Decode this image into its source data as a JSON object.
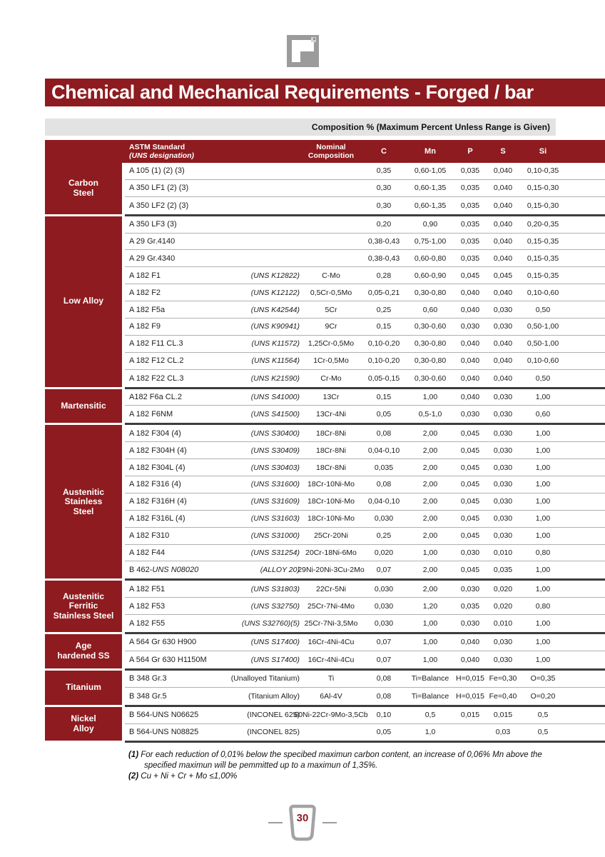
{
  "page": {
    "title": "Chemical and Mechanical Requirements - Forged / bar",
    "page_number": "30"
  },
  "colors": {
    "maroon": "#8e1b1f",
    "note_bar_gray": "#e3e3e3",
    "row_line_light": "#b0b0b0",
    "group_line_dark": "#3d3d3d",
    "logo_gray": "#9b9b9b"
  },
  "table": {
    "composition_note": "Composition % (Maximum Percent Unless Range is Given)",
    "headers": {
      "astm1": "ASTM Standard",
      "astm2": "(UNS designation)",
      "nominal1": "Nominal",
      "nominal2": "Composition",
      "cols": [
        "C",
        "Mn",
        "P",
        "S",
        "Si"
      ]
    },
    "groups": [
      {
        "label": [
          "Carbon",
          "Steel"
        ],
        "rows": [
          {
            "astm": "A 105 (1) (2) (3)",
            "uns": "",
            "nom": "",
            "c": "0,35",
            "mn": "0,60-1,05",
            "p": "0,035",
            "s": "0,040",
            "si": "0,10-0,35"
          },
          {
            "astm": "A 350 LF1 (2) (3)",
            "uns": "",
            "nom": "",
            "c": "0,30",
            "mn": "0,60-1,35",
            "p": "0,035",
            "s": "0,040",
            "si": "0,15-0,30"
          },
          {
            "astm": "A 350 LF2 (2) (3)",
            "uns": "",
            "nom": "",
            "c": "0,30",
            "mn": "0,60-1,35",
            "p": "0,035",
            "s": "0,040",
            "si": "0,15-0,30"
          }
        ]
      },
      {
        "label": [
          "Low Alloy"
        ],
        "rows": [
          {
            "astm": "A 350 LF3 (3)",
            "uns": "",
            "nom": "",
            "c": "0,20",
            "mn": "0,90",
            "p": "0,035",
            "s": "0,040",
            "si": "0,20-0,35"
          },
          {
            "astm": "A 29 Gr.4140",
            "uns": "",
            "nom": "",
            "c": "0,38-0,43",
            "mn": "0,75-1,00",
            "p": "0,035",
            "s": "0,040",
            "si": "0,15-0,35"
          },
          {
            "astm": "A 29 Gr.4340",
            "uns": "",
            "nom": "",
            "c": "0,38-0,43",
            "mn": "0,60-0,80",
            "p": "0,035",
            "s": "0,040",
            "si": "0,15-0,35"
          },
          {
            "astm": "A 182 F1",
            "uns": "(UNS K12822)",
            "unsIt": true,
            "nom": "C-Mo",
            "c": "0,28",
            "mn": "0,60-0,90",
            "p": "0,045",
            "s": "0,045",
            "si": "0,15-0,35"
          },
          {
            "astm": "A 182 F2",
            "uns": "(UNS K12122)",
            "unsIt": true,
            "nom": "0,5Cr-0,5Mo",
            "c": "0,05-0,21",
            "mn": "0,30-0,80",
            "p": "0,040",
            "s": "0,040",
            "si": "0,10-0,60"
          },
          {
            "astm": "A 182 F5a",
            "uns": "(UNS K42544)",
            "unsIt": true,
            "nom": "5Cr",
            "c": "0,25",
            "mn": "0,60",
            "p": "0,040",
            "s": "0,030",
            "si": "0,50"
          },
          {
            "astm": "A 182 F9",
            "uns": "(UNS K90941)",
            "unsIt": true,
            "nom": "9Cr",
            "c": "0,15",
            "mn": "0,30-0,60",
            "p": "0,030",
            "s": "0,030",
            "si": "0,50-1,00"
          },
          {
            "astm": "A 182 F11 CL.3",
            "uns": "(UNS K11572)",
            "unsIt": true,
            "nom": "1,25Cr-0,5Mo",
            "c": "0,10-0,20",
            "mn": "0,30-0,80",
            "p": "0,040",
            "s": "0,040",
            "si": "0,50-1,00"
          },
          {
            "astm": "A 182 F12 CL.2",
            "uns": "(UNS K11564)",
            "unsIt": true,
            "nom": "1Cr-0,5Mo",
            "c": "0,10-0,20",
            "mn": "0,30-0,80",
            "p": "0,040",
            "s": "0,040",
            "si": "0,10-0,60"
          },
          {
            "astm": "A 182 F22 CL.3",
            "uns": "(UNS K21590)",
            "unsIt": true,
            "nom": "Cr-Mo",
            "c": "0,05-0,15",
            "mn": "0,30-0,60",
            "p": "0,040",
            "s": "0,040",
            "si": "0,50"
          }
        ]
      },
      {
        "label": [
          "Martensitic"
        ],
        "rows": [
          {
            "astm": "A182 F6a CL.2",
            "uns": "(UNS S41000)",
            "unsIt": true,
            "nom": "13Cr",
            "c": "0,15",
            "mn": "1,00",
            "p": "0,040",
            "s": "0,030",
            "si": "1,00"
          },
          {
            "astm": "A 182 F6NM",
            "uns": "(UNS S41500)",
            "unsIt": true,
            "nom": "13Cr-4Ni",
            "c": "0,05",
            "mn": "0,5-1,0",
            "p": "0,030",
            "s": "0,030",
            "si": "0,60"
          }
        ]
      },
      {
        "label": [
          "Austenitic",
          "Stainless",
          "Steel"
        ],
        "rows": [
          {
            "astm": "A 182 F304 (4)",
            "uns": "(UNS S30400)",
            "unsIt": true,
            "nom": "18Cr-8Ni",
            "c": "0,08",
            "mn": "2,00",
            "p": "0,045",
            "s": "0,030",
            "si": "1,00"
          },
          {
            "astm": "A 182 F304H (4)",
            "uns": "(UNS S30409)",
            "unsIt": true,
            "nom": "18Cr-8Ni",
            "c": "0,04-0,10",
            "mn": "2,00",
            "p": "0,045",
            "s": "0,030",
            "si": "1,00"
          },
          {
            "astm": "A 182 F304L (4)",
            "uns": "(UNS S30403)",
            "unsIt": true,
            "nom": "18Cr-8Ni",
            "c": "0,035",
            "mn": "2,00",
            "p": "0,045",
            "s": "0,030",
            "si": "1,00"
          },
          {
            "astm": "A 182 F316 (4)",
            "uns": "(UNS S31600)",
            "unsIt": true,
            "nom": "18Cr-10Ni-Mo",
            "c": "0,08",
            "mn": "2,00",
            "p": "0,045",
            "s": "0,030",
            "si": "1,00"
          },
          {
            "astm": "A 182 F316H (4)",
            "uns": "(UNS S31609)",
            "unsIt": true,
            "nom": "18Cr-10Ni-Mo",
            "c": "0,04-0,10",
            "mn": "2,00",
            "p": "0,045",
            "s": "0,030",
            "si": "1,00"
          },
          {
            "astm": "A 182 F316L (4)",
            "uns": "(UNS S31603)",
            "unsIt": true,
            "nom": "18Cr-10Ni-Mo",
            "c": "0,030",
            "mn": "2,00",
            "p": "0,045",
            "s": "0,030",
            "si": "1,00"
          },
          {
            "astm": "A 182 F310",
            "uns": "(UNS S31000)",
            "unsIt": true,
            "nom": "25Cr-20Ni",
            "c": "0,25",
            "mn": "2,00",
            "p": "0,045",
            "s": "0,030",
            "si": "1,00"
          },
          {
            "astm": "A 182 F44",
            "uns": "(UNS S31254)",
            "unsIt": true,
            "nom": "20Cr-18Ni-6Mo",
            "c": "0,020",
            "mn": "1,00",
            "p": "0,030",
            "s": "0,010",
            "si": "0,80"
          },
          {
            "astm": "B 462-",
            "astmIt": " UNS N08020",
            "uns": "(ALLOY 20)",
            "unsIt": true,
            "nom": "29Ni-20Ni-3Cu-2Mo",
            "c": "0,07",
            "mn": "2,00",
            "p": "0,045",
            "s": "0,035",
            "si": "1,00"
          }
        ]
      },
      {
        "label": [
          "Austenitic",
          "Ferritic",
          "Stainless Steel"
        ],
        "rows": [
          {
            "astm": "A 182 F51",
            "uns": "(UNS S31803)",
            "unsIt": true,
            "nom": "22Cr-5Ni",
            "c": "0,030",
            "mn": "2,00",
            "p": "0,030",
            "s": "0,020",
            "si": "1,00"
          },
          {
            "astm": "A 182 F53",
            "uns": "(UNS S32750)",
            "unsIt": true,
            "nom": "25Cr-7Ni-4Mo",
            "c": "0,030",
            "mn": "1,20",
            "p": "0,035",
            "s": "0,020",
            "si": "0,80"
          },
          {
            "astm": "A 182 F55",
            "uns": "(UNS S32760)(5)",
            "unsIt": true,
            "nom": "25Cr-7Ni-3,5Mo",
            "c": "0,030",
            "mn": "1,00",
            "p": "0,030",
            "s": "0,010",
            "si": "1,00"
          }
        ]
      },
      {
        "label": [
          "Age",
          "hardened SS"
        ],
        "rows": [
          {
            "astm": "A 564 Gr 630 H900",
            "uns": "(UNS S17400)",
            "unsIt": true,
            "nom": "16Cr-4Ni-4Cu",
            "c": "0,07",
            "mn": "1,00",
            "p": "0,040",
            "s": "0,030",
            "si": "1,00"
          },
          {
            "astm": "A 564 Gr 630 H1150M",
            "uns": "(UNS S17400)",
            "unsIt": true,
            "nom": "16Cr-4Ni-4Cu",
            "c": "0,07",
            "mn": "1,00",
            "p": "0,040",
            "s": "0,030",
            "si": "1,00"
          }
        ]
      },
      {
        "label": [
          "Titanium"
        ],
        "rows": [
          {
            "astm": "B 348 Gr.3",
            "uns": "(Unalloyed Titanium)",
            "unsIt": false,
            "nom": "Ti",
            "c": "0,08",
            "mn": "Ti=Balance",
            "p": "H=0,015",
            "s": "Fe=0,30",
            "si": "O=0,35"
          },
          {
            "astm": "B 348 Gr.5",
            "uns": "(Titanium Alloy)",
            "unsIt": false,
            "nom": "6Al-4V",
            "c": "0,08",
            "mn": "Ti=Balance",
            "p": "H=0,015",
            "s": "Fe=0,40",
            "si": "O=0,20"
          }
        ]
      },
      {
        "label": [
          "Nickel",
          "Alloy"
        ],
        "rows": [
          {
            "astm": "B 564-UNS N06625",
            "uns": "(INCONEL 625)",
            "unsIt": false,
            "nom": "60Ni-22Cr-9Mo-3,5Cb",
            "c": "0,10",
            "mn": "0,5",
            "p": "0,015",
            "s": "0,015",
            "si": "0,5"
          },
          {
            "astm": "B 564-UNS N08825",
            "uns": "(INCONEL 825)",
            "unsIt": false,
            "nom": "",
            "c": "0,05",
            "mn": "1,0",
            "p": "",
            "s": "0,03",
            "si": "0,5"
          }
        ]
      }
    ]
  },
  "footnotes": [
    {
      "marker": "(1)",
      "lines": [
        "For each reduction of 0,01% below the specibed maximun carbon content, an increase of 0,06% Mn above the",
        "specified maximun will be pemmitted up to a maximun of 1,35%."
      ]
    },
    {
      "marker": "(2)",
      "lines": [
        "Cu + Ni + Cr + Mo ≤1,00%"
      ]
    }
  ]
}
